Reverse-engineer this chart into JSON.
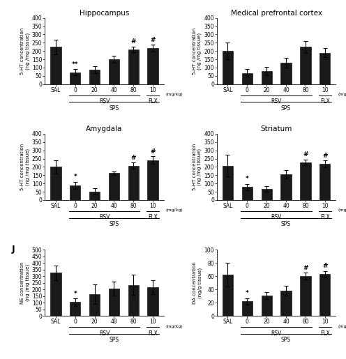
{
  "panels": [
    {
      "title": "Hippocampus",
      "ylabel": "5-HT concentration\n(ng /mg tissue)",
      "ylim": [
        0,
        400
      ],
      "yticks": [
        0,
        50,
        100,
        150,
        200,
        250,
        300,
        350,
        400
      ],
      "values": [
        225,
        72,
        88,
        150,
        210,
        218
      ],
      "errors": [
        45,
        18,
        20,
        22,
        18,
        20
      ],
      "sig_markers": [
        "",
        "**",
        "",
        "",
        "#",
        "#"
      ],
      "panel_label": ""
    },
    {
      "title": "Medical prefrontal cortex",
      "ylabel": "5-HT concentration\n(ng /mg tissue)",
      "ylim": [
        0,
        400
      ],
      "yticks": [
        0,
        50,
        100,
        150,
        200,
        250,
        300,
        350,
        400
      ],
      "values": [
        200,
        68,
        78,
        130,
        225,
        190
      ],
      "errors": [
        50,
        22,
        25,
        30,
        35,
        28
      ],
      "sig_markers": [
        "",
        "",
        "",
        "",
        "",
        ""
      ],
      "panel_label": ""
    },
    {
      "title": "Amygdala",
      "ylabel": "5-HT concentration\n(ng /mg tissue)",
      "ylim": [
        0,
        400
      ],
      "yticks": [
        0,
        50,
        100,
        150,
        200,
        250,
        300,
        350,
        400
      ],
      "values": [
        200,
        88,
        52,
        162,
        208,
        242
      ],
      "errors": [
        42,
        22,
        18,
        12,
        18,
        22
      ],
      "sig_markers": [
        "",
        "*",
        "",
        "",
        "#",
        "#"
      ],
      "panel_label": ""
    },
    {
      "title": "Striatum",
      "ylabel": "5-HT concentration\n(ng /mg tissue)",
      "ylim": [
        0,
        400
      ],
      "yticks": [
        0,
        50,
        100,
        150,
        200,
        250,
        300,
        350,
        400
      ],
      "values": [
        208,
        78,
        68,
        155,
        228,
        218
      ],
      "errors": [
        65,
        20,
        18,
        25,
        18,
        20
      ],
      "sig_markers": [
        "",
        "*",
        "",
        "",
        "#",
        "#"
      ],
      "panel_label": ""
    },
    {
      "title": "",
      "ylabel": "NE concentration\n(ng /mg tissue)",
      "ylim": [
        0,
        500
      ],
      "yticks": [
        0,
        50,
        100,
        150,
        200,
        250,
        300,
        350,
        400,
        450,
        500
      ],
      "values": [
        325,
        105,
        165,
        205,
        235,
        218
      ],
      "errors": [
        55,
        28,
        75,
        52,
        75,
        52
      ],
      "sig_markers": [
        "",
        "*",
        "",
        "",
        "",
        ""
      ],
      "panel_label": "J"
    },
    {
      "title": "",
      "ylabel": "DA concentration\n(ng/g tissue)",
      "ylim": [
        0,
        100
      ],
      "yticks": [
        0,
        20,
        40,
        60,
        80,
        100
      ],
      "values": [
        62,
        22,
        31,
        38,
        60,
        63
      ],
      "errors": [
        18,
        5,
        5,
        7,
        5,
        5
      ],
      "sig_markers": [
        "",
        "*",
        "",
        "",
        "#",
        "#"
      ],
      "panel_label": ""
    }
  ],
  "x_labels": [
    "SAL",
    "0",
    "20",
    "40",
    "80",
    "10"
  ],
  "bar_color": "#1a1a1a",
  "bar_width": 0.55,
  "rsv_label": "RSV",
  "flx_label": "FLX",
  "sps_label": "SPS",
  "mgkg_label": "(mg/kg)"
}
